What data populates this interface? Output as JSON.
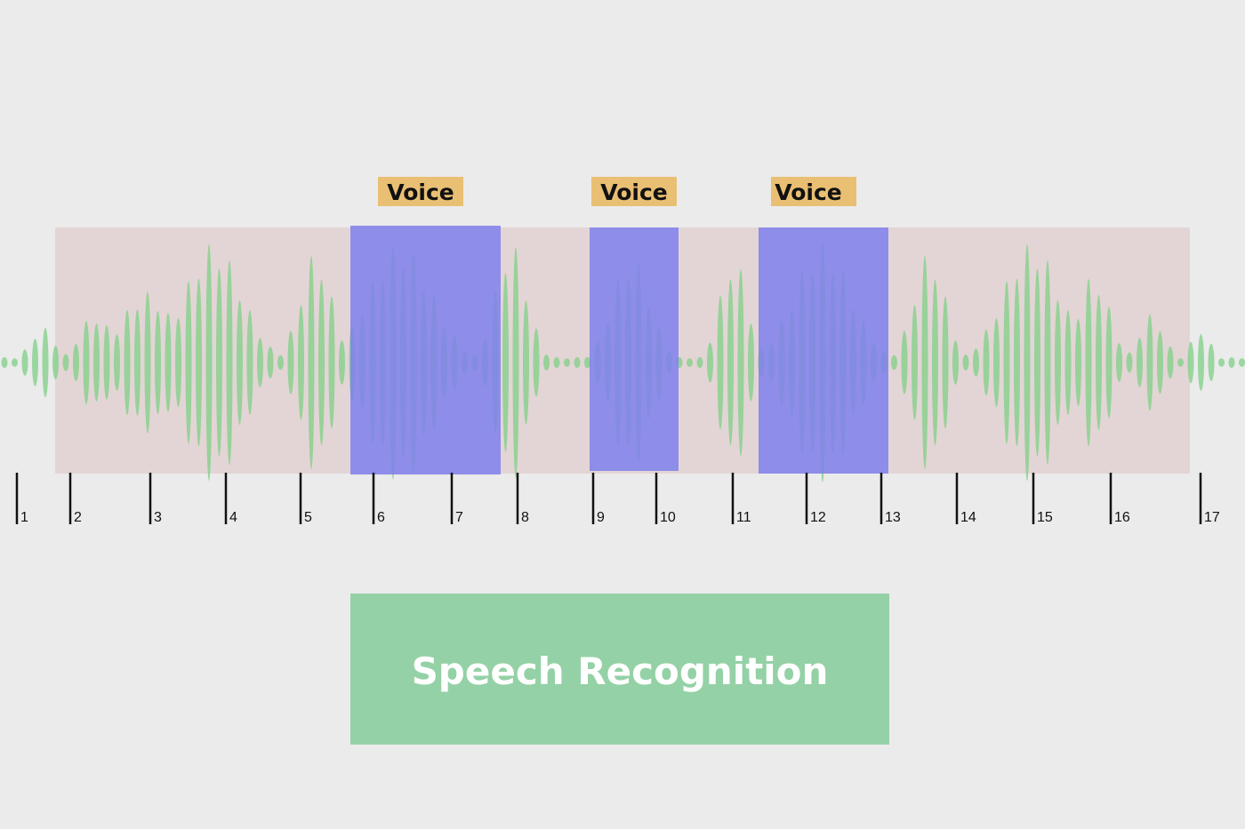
{
  "voice_labels": [
    "Voice",
    "Voice",
    "Voice"
  ],
  "ticks": [
    "1",
    "2",
    "3",
    "4",
    "5",
    "6",
    "7",
    "8",
    "9",
    "10",
    "11",
    "12",
    "13",
    "14",
    "15",
    "16",
    "17"
  ],
  "output": {
    "label": "Speech Recognition"
  }
}
